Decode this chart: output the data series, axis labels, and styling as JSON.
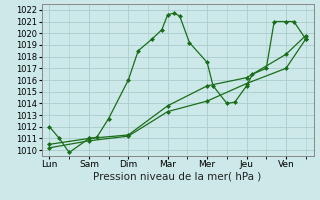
{
  "background_color": "#cce8e8",
  "grid_color": "#aacccc",
  "line_color": "#1a6e1a",
  "xlabel": "Pression niveau de la mer( hPa )",
  "ylim": [
    1009.5,
    1022.5
  ],
  "yticks": [
    1010,
    1011,
    1012,
    1013,
    1014,
    1015,
    1016,
    1017,
    1018,
    1019,
    1020,
    1021,
    1022
  ],
  "xtick_labels": [
    "Lun",
    "Sam",
    "Dim",
    "Mar",
    "Mer",
    "Jeu",
    "Ven"
  ],
  "xtick_positions": [
    0,
    1,
    2,
    3,
    4,
    5,
    6
  ],
  "xlim": [
    -0.2,
    6.7
  ],
  "series1_x": [
    0,
    0.25,
    0.5,
    1.0,
    1.2,
    1.5,
    2.0,
    2.25,
    2.6,
    2.85,
    3.0,
    3.15,
    3.3,
    3.55,
    4.0,
    4.15,
    4.5,
    4.7,
    5.0,
    5.15,
    5.5,
    5.7,
    6.0,
    6.2,
    6.5
  ],
  "series1_y": [
    1012,
    1011,
    1009.8,
    1011,
    1011.1,
    1012.7,
    1016.0,
    1018.5,
    1019.5,
    1020.3,
    1021.6,
    1021.7,
    1021.5,
    1019.2,
    1017.5,
    1015.5,
    1014.0,
    1014.1,
    1015.5,
    1016.5,
    1017.0,
    1021.0,
    1021.0,
    1021.0,
    1019.5
  ],
  "series2_x": [
    0,
    1.0,
    2.0,
    3.0,
    4.0,
    5.0,
    6.0,
    6.5
  ],
  "series2_y": [
    1010.2,
    1010.8,
    1011.2,
    1013.3,
    1014.2,
    1015.7,
    1017.0,
    1019.5
  ],
  "series3_x": [
    0,
    1.0,
    2.0,
    3.0,
    4.0,
    5.0,
    6.0,
    6.5
  ],
  "series3_y": [
    1010.5,
    1011.0,
    1011.3,
    1013.8,
    1015.5,
    1016.2,
    1018.2,
    1019.8
  ]
}
